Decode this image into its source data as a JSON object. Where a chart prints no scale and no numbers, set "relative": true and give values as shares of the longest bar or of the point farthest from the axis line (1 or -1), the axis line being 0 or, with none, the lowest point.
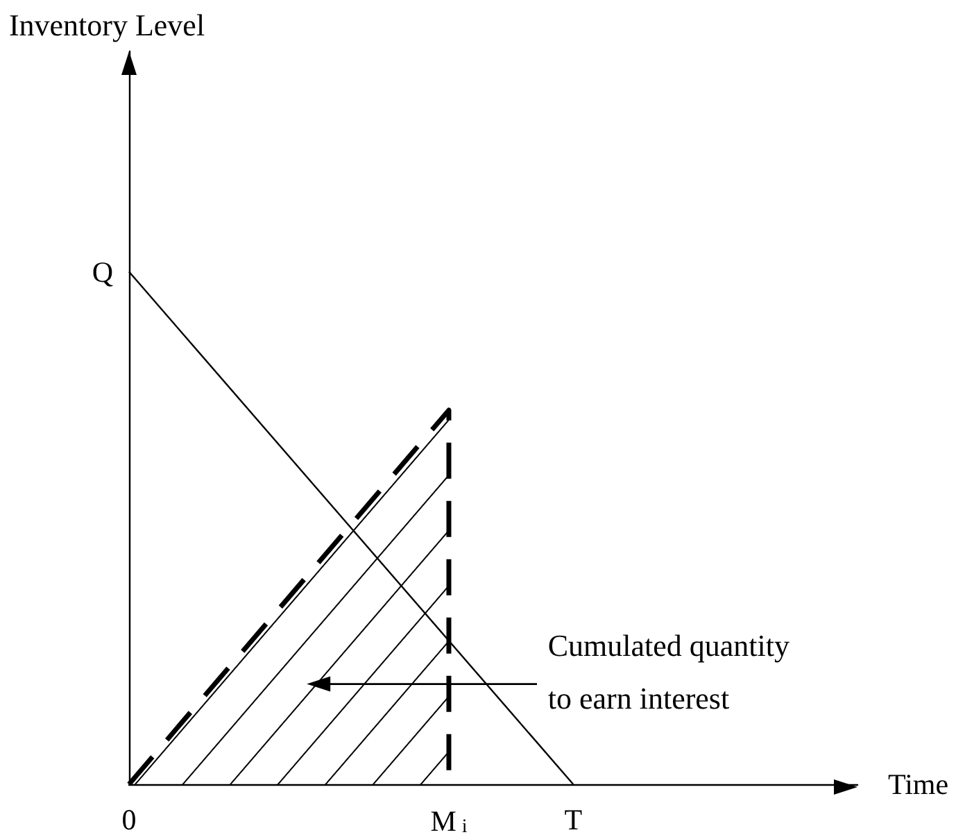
{
  "chart_data": {
    "type": "line",
    "xlabel": "Time",
    "relative": true,
    "marker": "none",
    "categories": [
      "0",
      null,
      null,
      null,
      null,
      null,
      null,
      null,
      null,
      null,
      null,
      null,
      null,
      null,
      null,
      null,
      null,
      null,
      "M$_{i}$",
      null,
      null,
      null,
      null,
      null,
      null,
      "T",
      null,
      null,
      null,
      null,
      null,
      null,
      null,
      null,
      null,
      null,
      null,
      null,
      null,
      null,
      null,
      null
    ],
    "series": [
      {
        "color": "#000000",
        "x": [
          "0",
          "T"
        ],
        "values": [
          1,
          0
        ],
        "line_style": "solid"
      },
      {
        "type": "area",
        "color": "#000000",
        "x": [
          "0",
          "M$_{i}$",
          "M$_{i}$"
        ],
        "values": [
          0,
          0.73,
          0
        ],
        "line_style": "dashed"
      }
    ],
    "annotations": [
      "Inventory Level",
      {
        "text": "Q",
        "x": "0",
        "y": 1
      },
      "Cumulated quantity\nto earn interest"
    ]
  }
}
